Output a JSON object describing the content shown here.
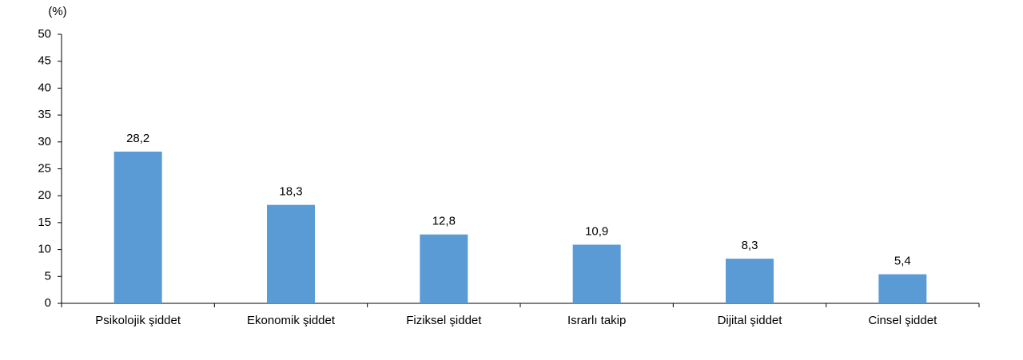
{
  "chart_data": {
    "type": "bar",
    "unit_label": "(%)",
    "categories": [
      "Psikolojik şiddet",
      "Ekonomik şiddet",
      "Fiziksel şiddet",
      "Israrlı takip",
      "Dijital şiddet",
      "Cinsel şiddet"
    ],
    "values": [
      28.2,
      18.3,
      12.8,
      10.9,
      8.3,
      5.4
    ],
    "value_labels": [
      "28,2",
      "18,3",
      "12,8",
      "10,9",
      "8,3",
      "5,4"
    ],
    "color": "#5b9bd5",
    "ylim": [
      0,
      50
    ],
    "yticks": [
      0,
      5,
      10,
      15,
      20,
      25,
      30,
      35,
      40,
      45,
      50
    ],
    "grid": false
  }
}
